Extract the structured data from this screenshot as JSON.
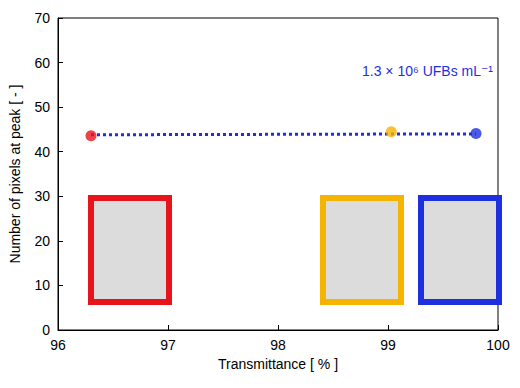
{
  "chart_data": {
    "type": "scatter",
    "x_label": "Transmittance [ % ]",
    "y_label": "Number of pixels at peak [ - ]",
    "annotations": [
      "1.3 × 10⁶ UFBs mL⁻¹"
    ],
    "xlim": [
      96,
      100
    ],
    "xticks": [
      96,
      97,
      98,
      99,
      100
    ],
    "ylim": [
      0,
      70
    ],
    "yticks": [
      0,
      10,
      20,
      30,
      40,
      50,
      60,
      70
    ],
    "grid": false,
    "series": [
      {
        "type": "scatter",
        "x": [
          96.3,
          99.03,
          99.8
        ],
        "values": [
          43.6,
          44.5,
          44.1
        ],
        "colors": [
          "#e8141c",
          "#f5b400",
          "#1e2fe0"
        ],
        "marker": "circle"
      },
      {
        "type": "line",
        "x": [
          96.3,
          99.8
        ],
        "values": [
          43.8,
          44.0
        ],
        "color": "#1e2fe0",
        "line_style": "dotted"
      }
    ]
  }
}
